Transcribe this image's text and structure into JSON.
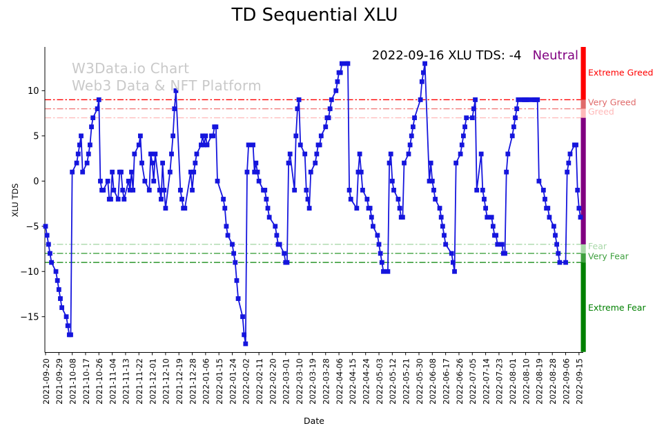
{
  "title": "TD Sequential XLU",
  "watermark": {
    "line1": "W3Data.io Chart",
    "line2": "Web3 Data & NFT Platform",
    "color": "#c9c9c9"
  },
  "annotation": {
    "text": "2022-09-16 XLU TDS: -4",
    "status": "Neutral",
    "status_color": "#800080"
  },
  "axes": {
    "xlabel": "Date",
    "ylabel": "XLU TDS"
  },
  "chart_data": {
    "type": "line",
    "title": "TD Sequential XLU",
    "xlabel": "Date",
    "ylabel": "XLU TDS",
    "ylim": [
      -18.9,
      14.8
    ],
    "grid": false,
    "legend": "none",
    "x_start": "2021-09-20",
    "x_end": "2022-09-16",
    "yticks": [
      10,
      5,
      0,
      -5,
      -10,
      -15
    ],
    "xtick_labels": [
      "2021-09-20",
      "2021-09-29",
      "2021-10-08",
      "2021-10-17",
      "2021-10-26",
      "2021-11-04",
      "2021-11-13",
      "2021-11-22",
      "2021-12-01",
      "2021-12-10",
      "2021-12-19",
      "2021-12-28",
      "2022-01-06",
      "2022-01-15",
      "2022-01-24",
      "2022-02-02",
      "2022-02-11",
      "2022-02-20",
      "2022-03-01",
      "2022-03-10",
      "2022-03-19",
      "2022-03-28",
      "2022-04-06",
      "2022-04-15",
      "2022-04-24",
      "2022-05-03",
      "2022-05-12",
      "2022-05-21",
      "2022-05-30",
      "2022-06-08",
      "2022-06-17",
      "2022-06-26",
      "2022-07-05",
      "2022-07-14",
      "2022-07-23",
      "2022-08-01",
      "2022-08-10",
      "2022-08-19",
      "2022-08-28",
      "2022-09-06",
      "2022-09-15"
    ],
    "thresholds": [
      {
        "value": 9,
        "color": "#ff0000"
      },
      {
        "value": 8,
        "color": "#f07d7d"
      },
      {
        "value": 7,
        "color": "#ffb9b9"
      },
      {
        "value": -7,
        "color": "#a9d8a9"
      },
      {
        "value": -8,
        "color": "#3fa03f"
      },
      {
        "value": -9,
        "color": "#008000"
      }
    ],
    "sentiment_zones": [
      {
        "key": "extreme-greed",
        "label": "Extreme Greed",
        "from": 9,
        "to": 14.84,
        "color": "#ff0000",
        "label_at": 12.0
      },
      {
        "key": "very-greed",
        "label": "Very Greed",
        "from": 8,
        "to": 9,
        "color": "#e06a6a",
        "label_at": 8.7
      },
      {
        "key": "greed",
        "label": "Greed",
        "from": 7,
        "to": 8,
        "color": "#ffb9b9",
        "label_at": 7.7
      },
      {
        "key": "neutral",
        "label": "",
        "from": -7,
        "to": 7,
        "color": "#800080",
        "label_at": 0
      },
      {
        "key": "fear",
        "label": "Fear",
        "from": -8,
        "to": -7,
        "color": "#a9d8a9",
        "label_at": -7.2
      },
      {
        "key": "very-fear",
        "label": "Very Fear",
        "from": -9,
        "to": -8,
        "color": "#3fa03f",
        "label_at": -8.3
      },
      {
        "key": "extreme-fear",
        "label": "Extreme Fear",
        "from": -18.9,
        "to": -9,
        "color": "#008000",
        "label_at": -14.0
      }
    ],
    "series": [
      {
        "name": "XLU TDS",
        "color": "#1515dd",
        "marker": "square",
        "points": [
          [
            "2021-09-20",
            -5
          ],
          [
            "2021-09-21",
            -6
          ],
          [
            "2021-09-22",
            -7
          ],
          [
            "2021-09-23",
            -8
          ],
          [
            "2021-09-24",
            -9
          ],
          [
            "2021-09-27",
            -10
          ],
          [
            "2021-09-28",
            -11
          ],
          [
            "2021-09-29",
            -12
          ],
          [
            "2021-09-30",
            -13
          ],
          [
            "2021-10-01",
            -14
          ],
          [
            "2021-10-04",
            -15
          ],
          [
            "2021-10-05",
            -16
          ],
          [
            "2021-10-06",
            -17
          ],
          [
            "2021-10-07",
            -17
          ],
          [
            "2021-10-08",
            1
          ],
          [
            "2021-10-11",
            2
          ],
          [
            "2021-10-12",
            3
          ],
          [
            "2021-10-13",
            4
          ],
          [
            "2021-10-14",
            5
          ],
          [
            "2021-10-15",
            1
          ],
          [
            "2021-10-18",
            2
          ],
          [
            "2021-10-19",
            3
          ],
          [
            "2021-10-20",
            4
          ],
          [
            "2021-10-21",
            6
          ],
          [
            "2021-10-22",
            7
          ],
          [
            "2021-10-25",
            8
          ],
          [
            "2021-10-26",
            9
          ],
          [
            "2021-10-27",
            0
          ],
          [
            "2021-10-28",
            -1
          ],
          [
            "2021-10-29",
            -1
          ],
          [
            "2021-11-01",
            0
          ],
          [
            "2021-11-02",
            -2
          ],
          [
            "2021-11-03",
            -2
          ],
          [
            "2021-11-04",
            1
          ],
          [
            "2021-11-05",
            -1
          ],
          [
            "2021-11-08",
            -2
          ],
          [
            "2021-11-09",
            1
          ],
          [
            "2021-11-10",
            1
          ],
          [
            "2021-11-11",
            -1
          ],
          [
            "2021-11-12",
            -2
          ],
          [
            "2021-11-15",
            0
          ],
          [
            "2021-11-16",
            -1
          ],
          [
            "2021-11-17",
            1
          ],
          [
            "2021-11-18",
            -1
          ],
          [
            "2021-11-19",
            3
          ],
          [
            "2021-11-22",
            4
          ],
          [
            "2021-11-23",
            5
          ],
          [
            "2021-11-24",
            2
          ],
          [
            "2021-11-26",
            0
          ],
          [
            "2021-11-29",
            -1
          ],
          [
            "2021-11-30",
            3
          ],
          [
            "2021-12-01",
            2
          ],
          [
            "2021-12-02",
            0
          ],
          [
            "2021-12-03",
            3
          ],
          [
            "2021-12-06",
            -1
          ],
          [
            "2021-12-07",
            -2
          ],
          [
            "2021-12-08",
            2
          ],
          [
            "2021-12-09",
            -1
          ],
          [
            "2021-12-10",
            -3
          ],
          [
            "2021-12-13",
            1
          ],
          [
            "2021-12-14",
            3
          ],
          [
            "2021-12-15",
            5
          ],
          [
            "2021-12-16",
            8
          ],
          [
            "2021-12-17",
            10
          ],
          [
            "2021-12-20",
            -1
          ],
          [
            "2021-12-21",
            -2
          ],
          [
            "2021-12-22",
            -3
          ],
          [
            "2021-12-23",
            -3
          ],
          [
            "2021-12-27",
            1
          ],
          [
            "2021-12-28",
            -1
          ],
          [
            "2021-12-29",
            1
          ],
          [
            "2021-12-30",
            2
          ],
          [
            "2021-12-31",
            3
          ],
          [
            "2022-01-03",
            4
          ],
          [
            "2022-01-04",
            5
          ],
          [
            "2022-01-05",
            4
          ],
          [
            "2022-01-06",
            5
          ],
          [
            "2022-01-07",
            4
          ],
          [
            "2022-01-10",
            5
          ],
          [
            "2022-01-11",
            5
          ],
          [
            "2022-01-12",
            6
          ],
          [
            "2022-01-13",
            6
          ],
          [
            "2022-01-14",
            0
          ],
          [
            "2022-01-18",
            -2
          ],
          [
            "2022-01-19",
            -3
          ],
          [
            "2022-01-20",
            -5
          ],
          [
            "2022-01-21",
            -6
          ],
          [
            "2022-01-24",
            -7
          ],
          [
            "2022-01-25",
            -8
          ],
          [
            "2022-01-26",
            -9
          ],
          [
            "2022-01-27",
            -11
          ],
          [
            "2022-01-28",
            -13
          ],
          [
            "2022-01-31",
            -15
          ],
          [
            "2022-02-01",
            -17
          ],
          [
            "2022-02-02",
            -18
          ],
          [
            "2022-02-03",
            1
          ],
          [
            "2022-02-04",
            4
          ],
          [
            "2022-02-07",
            4
          ],
          [
            "2022-02-08",
            1
          ],
          [
            "2022-02-09",
            2
          ],
          [
            "2022-02-10",
            1
          ],
          [
            "2022-02-11",
            0
          ],
          [
            "2022-02-14",
            -1
          ],
          [
            "2022-02-15",
            -1
          ],
          [
            "2022-02-16",
            -2
          ],
          [
            "2022-02-17",
            -3
          ],
          [
            "2022-02-18",
            -4
          ],
          [
            "2022-02-22",
            -5
          ],
          [
            "2022-02-23",
            -6
          ],
          [
            "2022-02-24",
            -7
          ],
          [
            "2022-02-25",
            -7
          ],
          [
            "2022-02-28",
            -8
          ],
          [
            "2022-03-01",
            -9
          ],
          [
            "2022-03-02",
            -9
          ],
          [
            "2022-03-03",
            2
          ],
          [
            "2022-03-04",
            3
          ],
          [
            "2022-03-07",
            -1
          ],
          [
            "2022-03-08",
            5
          ],
          [
            "2022-03-09",
            8
          ],
          [
            "2022-03-10",
            9
          ],
          [
            "2022-03-11",
            4
          ],
          [
            "2022-03-14",
            3
          ],
          [
            "2022-03-15",
            -1
          ],
          [
            "2022-03-16",
            -2
          ],
          [
            "2022-03-17",
            -3
          ],
          [
            "2022-03-18",
            1
          ],
          [
            "2022-03-21",
            2
          ],
          [
            "2022-03-22",
            3
          ],
          [
            "2022-03-23",
            4
          ],
          [
            "2022-03-24",
            4
          ],
          [
            "2022-03-25",
            5
          ],
          [
            "2022-03-28",
            6
          ],
          [
            "2022-03-29",
            7
          ],
          [
            "2022-03-30",
            7
          ],
          [
            "2022-03-31",
            8
          ],
          [
            "2022-04-01",
            9
          ],
          [
            "2022-04-04",
            10
          ],
          [
            "2022-04-05",
            11
          ],
          [
            "2022-04-06",
            12
          ],
          [
            "2022-04-07",
            12
          ],
          [
            "2022-04-08",
            13
          ],
          [
            "2022-04-11",
            13
          ],
          [
            "2022-04-12",
            13
          ],
          [
            "2022-04-13",
            -1
          ],
          [
            "2022-04-14",
            -2
          ],
          [
            "2022-04-18",
            -3
          ],
          [
            "2022-04-19",
            1
          ],
          [
            "2022-04-20",
            3
          ],
          [
            "2022-04-21",
            1
          ],
          [
            "2022-04-22",
            -1
          ],
          [
            "2022-04-25",
            -2
          ],
          [
            "2022-04-26",
            -3
          ],
          [
            "2022-04-27",
            -3
          ],
          [
            "2022-04-28",
            -4
          ],
          [
            "2022-04-29",
            -5
          ],
          [
            "2022-05-02",
            -6
          ],
          [
            "2022-05-03",
            -7
          ],
          [
            "2022-05-04",
            -8
          ],
          [
            "2022-05-05",
            -9
          ],
          [
            "2022-05-06",
            -10
          ],
          [
            "2022-05-09",
            -10
          ],
          [
            "2022-05-10",
            2
          ],
          [
            "2022-05-11",
            3
          ],
          [
            "2022-05-12",
            0
          ],
          [
            "2022-05-13",
            -1
          ],
          [
            "2022-05-16",
            -2
          ],
          [
            "2022-05-17",
            -3
          ],
          [
            "2022-05-18",
            -4
          ],
          [
            "2022-05-19",
            -4
          ],
          [
            "2022-05-20",
            2
          ],
          [
            "2022-05-23",
            3
          ],
          [
            "2022-05-24",
            4
          ],
          [
            "2022-05-25",
            5
          ],
          [
            "2022-05-26",
            6
          ],
          [
            "2022-05-27",
            7
          ],
          [
            "2022-05-31",
            9
          ],
          [
            "2022-06-01",
            11
          ],
          [
            "2022-06-02",
            12
          ],
          [
            "2022-06-03",
            13
          ],
          [
            "2022-06-06",
            0
          ],
          [
            "2022-06-07",
            2
          ],
          [
            "2022-06-08",
            0
          ],
          [
            "2022-06-09",
            -1
          ],
          [
            "2022-06-10",
            -2
          ],
          [
            "2022-06-13",
            -3
          ],
          [
            "2022-06-14",
            -4
          ],
          [
            "2022-06-15",
            -5
          ],
          [
            "2022-06-16",
            -6
          ],
          [
            "2022-06-17",
            -7
          ],
          [
            "2022-06-21",
            -8
          ],
          [
            "2022-06-22",
            -9
          ],
          [
            "2022-06-23",
            -10
          ],
          [
            "2022-06-24",
            2
          ],
          [
            "2022-06-27",
            3
          ],
          [
            "2022-06-28",
            4
          ],
          [
            "2022-06-29",
            5
          ],
          [
            "2022-06-30",
            6
          ],
          [
            "2022-07-01",
            7
          ],
          [
            "2022-07-05",
            7
          ],
          [
            "2022-07-06",
            8
          ],
          [
            "2022-07-07",
            9
          ],
          [
            "2022-07-08",
            -1
          ],
          [
            "2022-07-11",
            3
          ],
          [
            "2022-07-12",
            -1
          ],
          [
            "2022-07-13",
            -2
          ],
          [
            "2022-07-14",
            -3
          ],
          [
            "2022-07-15",
            -4
          ],
          [
            "2022-07-18",
            -4
          ],
          [
            "2022-07-19",
            -5
          ],
          [
            "2022-07-20",
            -6
          ],
          [
            "2022-07-21",
            -6
          ],
          [
            "2022-07-22",
            -7
          ],
          [
            "2022-07-25",
            -7
          ],
          [
            "2022-07-26",
            -8
          ],
          [
            "2022-07-27",
            -8
          ],
          [
            "2022-07-28",
            1
          ],
          [
            "2022-07-29",
            3
          ],
          [
            "2022-08-01",
            5
          ],
          [
            "2022-08-02",
            6
          ],
          [
            "2022-08-03",
            7
          ],
          [
            "2022-08-04",
            8
          ],
          [
            "2022-08-05",
            9
          ],
          [
            "2022-08-08",
            9
          ],
          [
            "2022-08-09",
            9
          ],
          [
            "2022-08-10",
            9
          ],
          [
            "2022-08-11",
            9
          ],
          [
            "2022-08-12",
            9
          ],
          [
            "2022-08-15",
            9
          ],
          [
            "2022-08-16",
            9
          ],
          [
            "2022-08-17",
            9
          ],
          [
            "2022-08-18",
            9
          ],
          [
            "2022-08-19",
            0
          ],
          [
            "2022-08-22",
            -1
          ],
          [
            "2022-08-23",
            -2
          ],
          [
            "2022-08-24",
            -3
          ],
          [
            "2022-08-25",
            -3
          ],
          [
            "2022-08-26",
            -4
          ],
          [
            "2022-08-29",
            -5
          ],
          [
            "2022-08-30",
            -6
          ],
          [
            "2022-08-31",
            -7
          ],
          [
            "2022-09-01",
            -8
          ],
          [
            "2022-09-02",
            -9
          ],
          [
            "2022-09-06",
            -9
          ],
          [
            "2022-09-07",
            1
          ],
          [
            "2022-09-08",
            2
          ],
          [
            "2022-09-09",
            3
          ],
          [
            "2022-09-12",
            4
          ],
          [
            "2022-09-13",
            4
          ],
          [
            "2022-09-14",
            -1
          ],
          [
            "2022-09-15",
            -3
          ],
          [
            "2022-09-16",
            -4
          ]
        ]
      }
    ]
  }
}
